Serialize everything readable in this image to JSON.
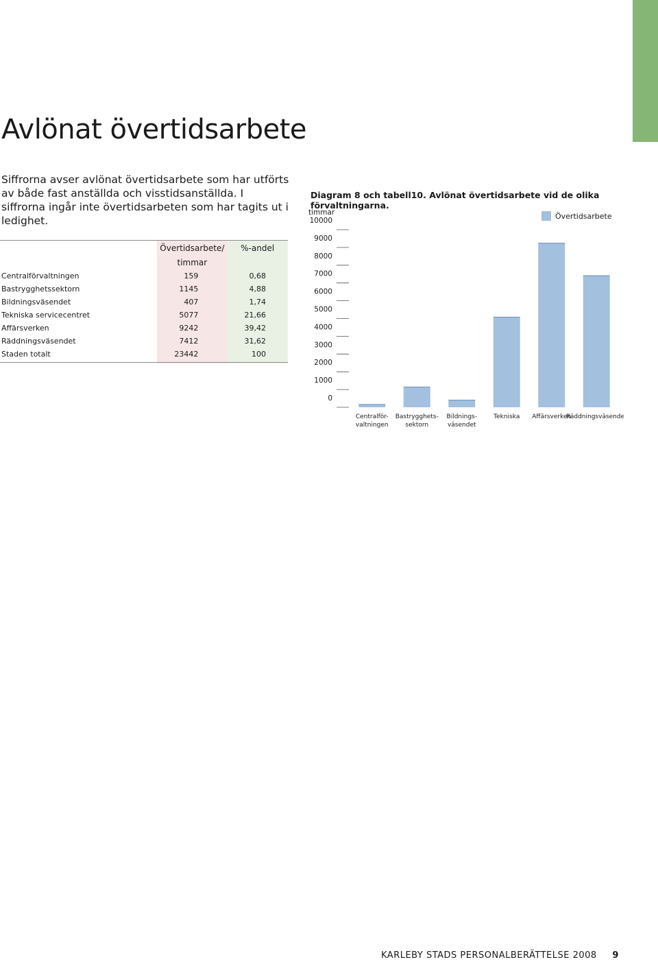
{
  "page": {
    "title": "Avlönat övertidsarbete",
    "intro": "Siffrorna avser avlönat övertidsarbete som har utförts av både fast anställda och visstidsanställda. I siffrorna ingår inte övertidsarbeten som har tagits ut i ledighet."
  },
  "table": {
    "headers": {
      "col1_line1": "Övertidsarbete/",
      "col1_line2": "timmar",
      "col2": "%-andel"
    },
    "rows": [
      {
        "label": "Centralförvaltningen",
        "hours": "159",
        "pct": "0,68"
      },
      {
        "label": "Bastrygghetssektorn",
        "hours": "1145",
        "pct": "4,88"
      },
      {
        "label": "Bildningsväsendet",
        "hours": "407",
        "pct": "1,74"
      },
      {
        "label": "Tekniska servicecentret",
        "hours": "5077",
        "pct": "21,66"
      },
      {
        "label": "Affärsverken",
        "hours": "9242",
        "pct": "39,42"
      },
      {
        "label": "Räddningsväsendet",
        "hours": "7412",
        "pct": "31,62"
      },
      {
        "label": "Staden totalt",
        "hours": "23442",
        "pct": "100"
      }
    ]
  },
  "chart_caption": "Diagram 8 och tabell10. Avlönat övertidsarbete vid de olika förvaltningarna.",
  "chart_data": {
    "type": "bar",
    "title": "Diagram 8 och tabell10. Avlönat övertidsarbete vid de olika förvaltningarna.",
    "ylabel": "timmar",
    "xlabel": "",
    "ylim": [
      0,
      10000
    ],
    "yticks": [
      "0",
      "1000",
      "2000",
      "3000",
      "4000",
      "5000",
      "6000",
      "7000",
      "8000",
      "9000",
      "10000"
    ],
    "grid": false,
    "legend_position": "top-right",
    "categories": [
      [
        "Centralför-",
        "valtningen"
      ],
      [
        "Bastrygghets-",
        "sektorn"
      ],
      [
        "Bildnings-",
        "väsendet"
      ],
      [
        "Tekniska"
      ],
      [
        "Affärsverken"
      ],
      [
        "Räddningsväsendet"
      ]
    ],
    "series": [
      {
        "name": "Övertidsarbete",
        "color": "#a3c0df",
        "values": [
          159,
          1145,
          407,
          5077,
          9242,
          7412
        ]
      }
    ]
  },
  "footer": {
    "text": "KARLEBY STADS PERSONALBERÄTTELSE 2008",
    "page_number": "9"
  },
  "colors": {
    "accent_tab": "#85b675",
    "bar": "#a3c0df",
    "table_col1_bg": "#f6e6e6",
    "table_col2_bg": "#e9f1e5"
  }
}
